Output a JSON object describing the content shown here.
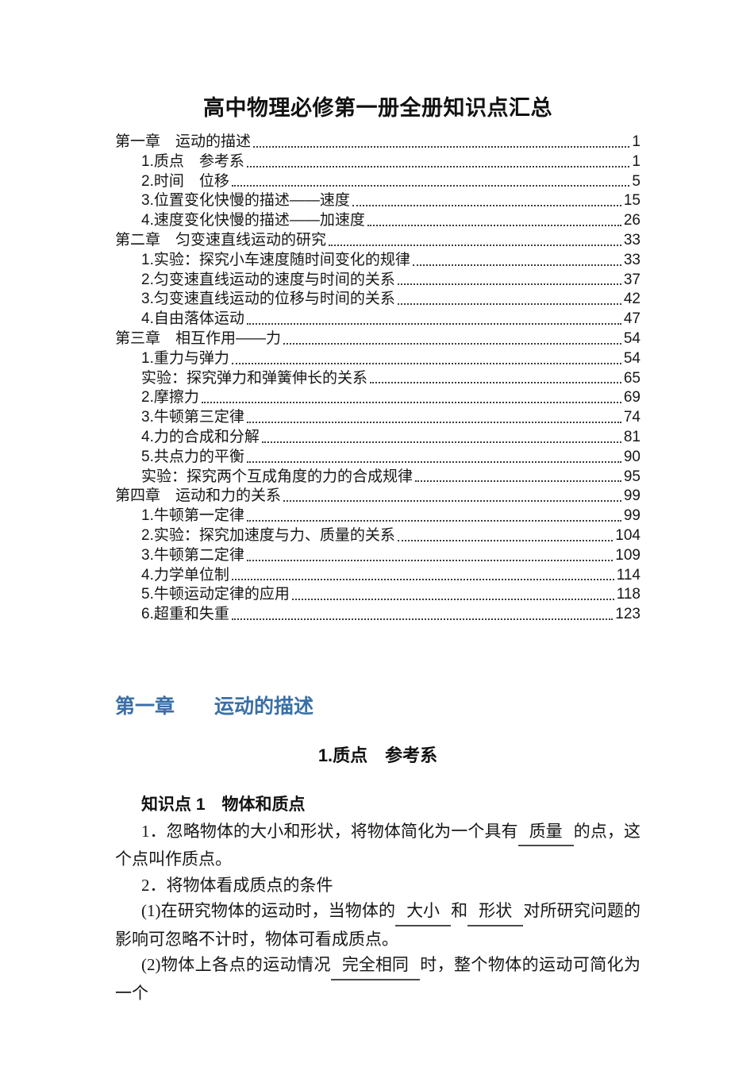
{
  "title": "高中物理必修第一册全册知识点汇总",
  "accent_color": "#3a6fa6",
  "toc": {
    "items": [
      {
        "label": "第一章　运动的描述",
        "page": "1",
        "level": 1
      },
      {
        "label": "1.质点　参考系",
        "page": "1",
        "level": 2
      },
      {
        "label": "2.时间　位移",
        "page": "5",
        "level": 2
      },
      {
        "label": "3.位置变化快慢的描述——速度",
        "page": "15",
        "level": 2
      },
      {
        "label": "4.速度变化快慢的描述——加速度",
        "page": "26",
        "level": 2
      },
      {
        "label": "第二章　匀变速直线运动的研究",
        "page": "33",
        "level": 1
      },
      {
        "label": "1.实验：探究小车速度随时间变化的规律",
        "page": "33",
        "level": 2
      },
      {
        "label": "2.匀变速直线运动的速度与时间的关系",
        "page": "37",
        "level": 2
      },
      {
        "label": "3.匀变速直线运动的位移与时间的关系",
        "page": "42",
        "level": 2
      },
      {
        "label": "4.自由落体运动",
        "page": "47",
        "level": 2
      },
      {
        "label": "第三章　相互作用——力",
        "page": "54",
        "level": 1
      },
      {
        "label": "1.重力与弹力",
        "page": "54",
        "level": 2
      },
      {
        "label": "实验：探究弹力和弹簧伸长的关系",
        "page": "65",
        "level": 2
      },
      {
        "label": "2.摩擦力",
        "page": "69",
        "level": 2
      },
      {
        "label": "3.牛顿第三定律",
        "page": "74",
        "level": 2
      },
      {
        "label": "4.力的合成和分解",
        "page": "81",
        "level": 2
      },
      {
        "label": "5.共点力的平衡",
        "page": "90",
        "level": 2
      },
      {
        "label": "实验：探究两个互成角度的力的合成规律",
        "page": "95",
        "level": 2
      },
      {
        "label": "第四章　运动和力的关系",
        "page": "99",
        "level": 1
      },
      {
        "label": "1.牛顿第一定律",
        "page": "99",
        "level": 2
      },
      {
        "label": "2.实验：探究加速度与力、质量的关系",
        "page": "104",
        "level": 2
      },
      {
        "label": "3.牛顿第二定律",
        "page": "109",
        "level": 2
      },
      {
        "label": "4.力学单位制",
        "page": "114",
        "level": 2
      },
      {
        "label": "5.牛顿运动定律的应用",
        "page": "118",
        "level": 2
      },
      {
        "label": "6.超重和失重",
        "page": "123",
        "level": 2
      }
    ]
  },
  "section": {
    "chapter_heading": "第一章　　运动的描述",
    "lesson_heading": "1.质点　参考系",
    "knowledge_point_heading": "知识点 1　物体和质点",
    "paragraphs": [
      {
        "segments": [
          {
            "text": "1．忽略物体的大小和形状，将物体简化为一个具有",
            "blank": false
          },
          {
            "text": "质量",
            "blank": true
          },
          {
            "text": "的点，这个点叫作质点。",
            "blank": false
          }
        ]
      },
      {
        "segments": [
          {
            "text": "2．将物体看成质点的条件",
            "blank": false
          }
        ]
      },
      {
        "segments": [
          {
            "text": "(1)在研究物体的运动时，当物体的",
            "blank": false
          },
          {
            "text": "大小",
            "blank": true
          },
          {
            "text": "和",
            "blank": false
          },
          {
            "text": "形状",
            "blank": true
          },
          {
            "text": "对所研究问题的影响可忽略不计时，物体可看成质点。",
            "blank": false
          }
        ]
      },
      {
        "segments": [
          {
            "text": "(2)物体上各点的运动情况",
            "blank": false
          },
          {
            "text": "完全相同",
            "blank": true
          },
          {
            "text": "时，整个物体的运动可简化为一个",
            "blank": false
          }
        ]
      }
    ]
  }
}
